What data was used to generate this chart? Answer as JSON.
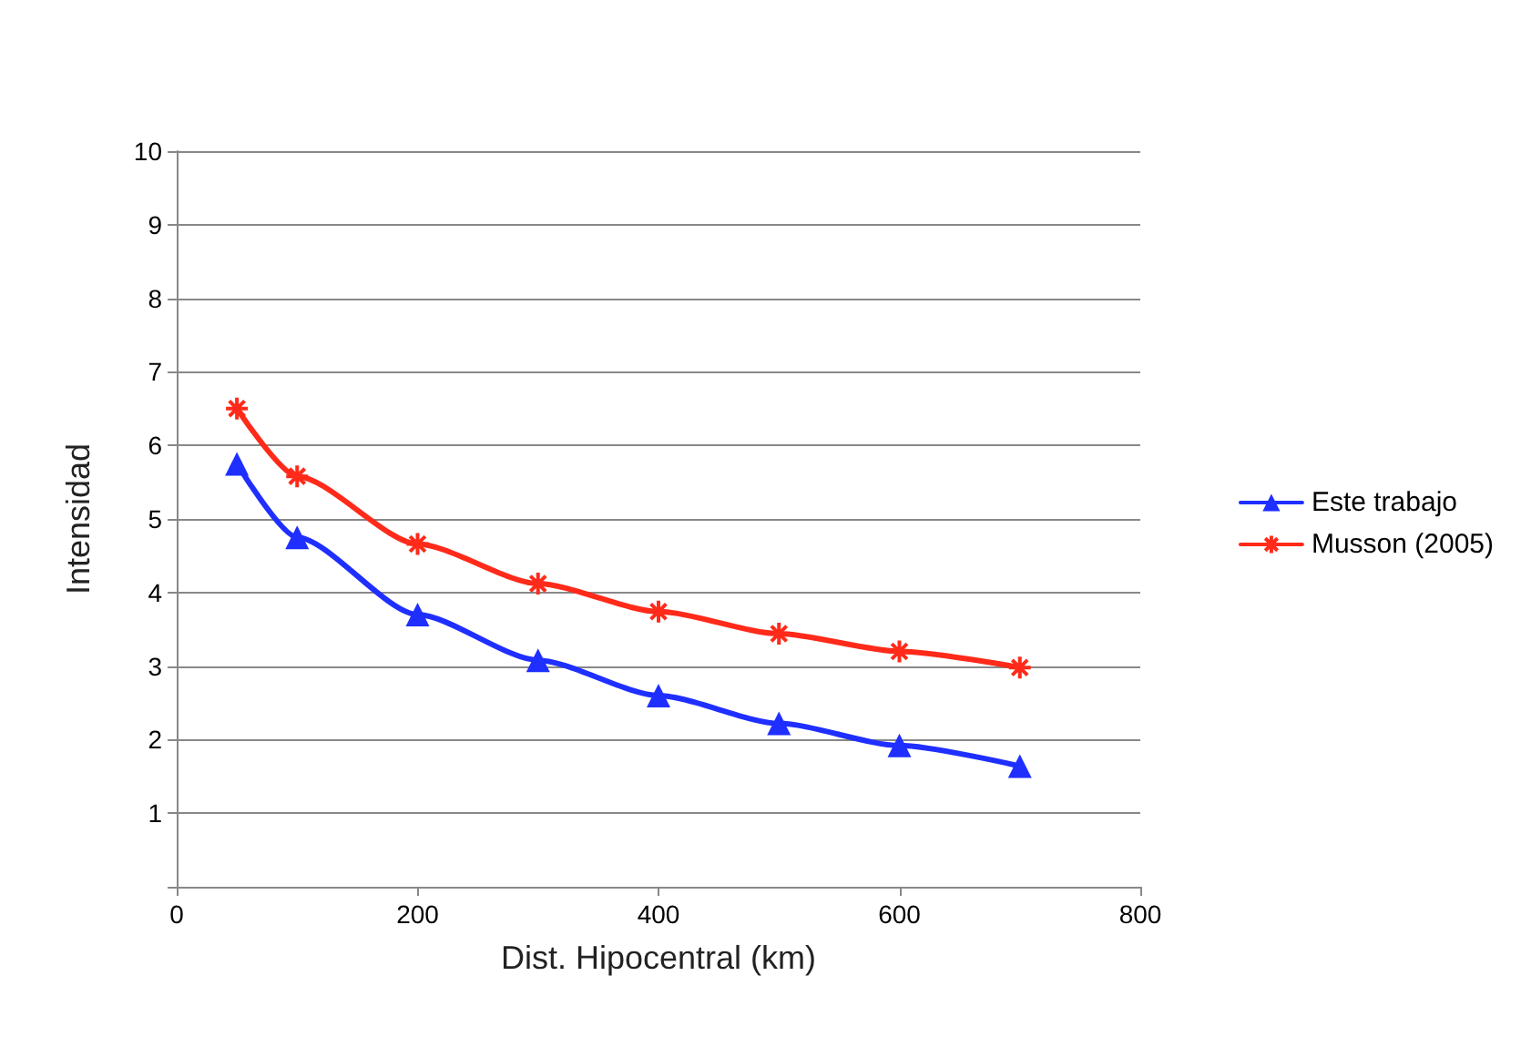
{
  "chart_data": {
    "type": "line",
    "xlabel": "Dist. Hipocentral (km)",
    "ylabel": "Intensidad",
    "x": [
      50,
      100,
      200,
      300,
      400,
      500,
      600,
      700
    ],
    "series": [
      {
        "name": "Este trabajo",
        "color": "#1f2fff",
        "marker": "triangle",
        "values": [
          5.75,
          4.75,
          3.7,
          3.08,
          2.6,
          2.22,
          1.92,
          1.64
        ]
      },
      {
        "name": "Musson (2005)",
        "color": "#ff2a1a",
        "marker": "cross",
        "values": [
          6.5,
          5.58,
          4.66,
          4.12,
          3.74,
          3.44,
          3.2,
          2.98
        ]
      }
    ],
    "xlim": [
      0,
      800
    ],
    "xticks": [
      0,
      200,
      400,
      600,
      800
    ],
    "ylim": [
      0,
      10
    ],
    "yticks": [
      {
        "value": 0,
        "label": null
      },
      1,
      2,
      3,
      4,
      5,
      6,
      7,
      8,
      9,
      10
    ],
    "grid": "y",
    "legend": "right",
    "line_style": "solid"
  }
}
